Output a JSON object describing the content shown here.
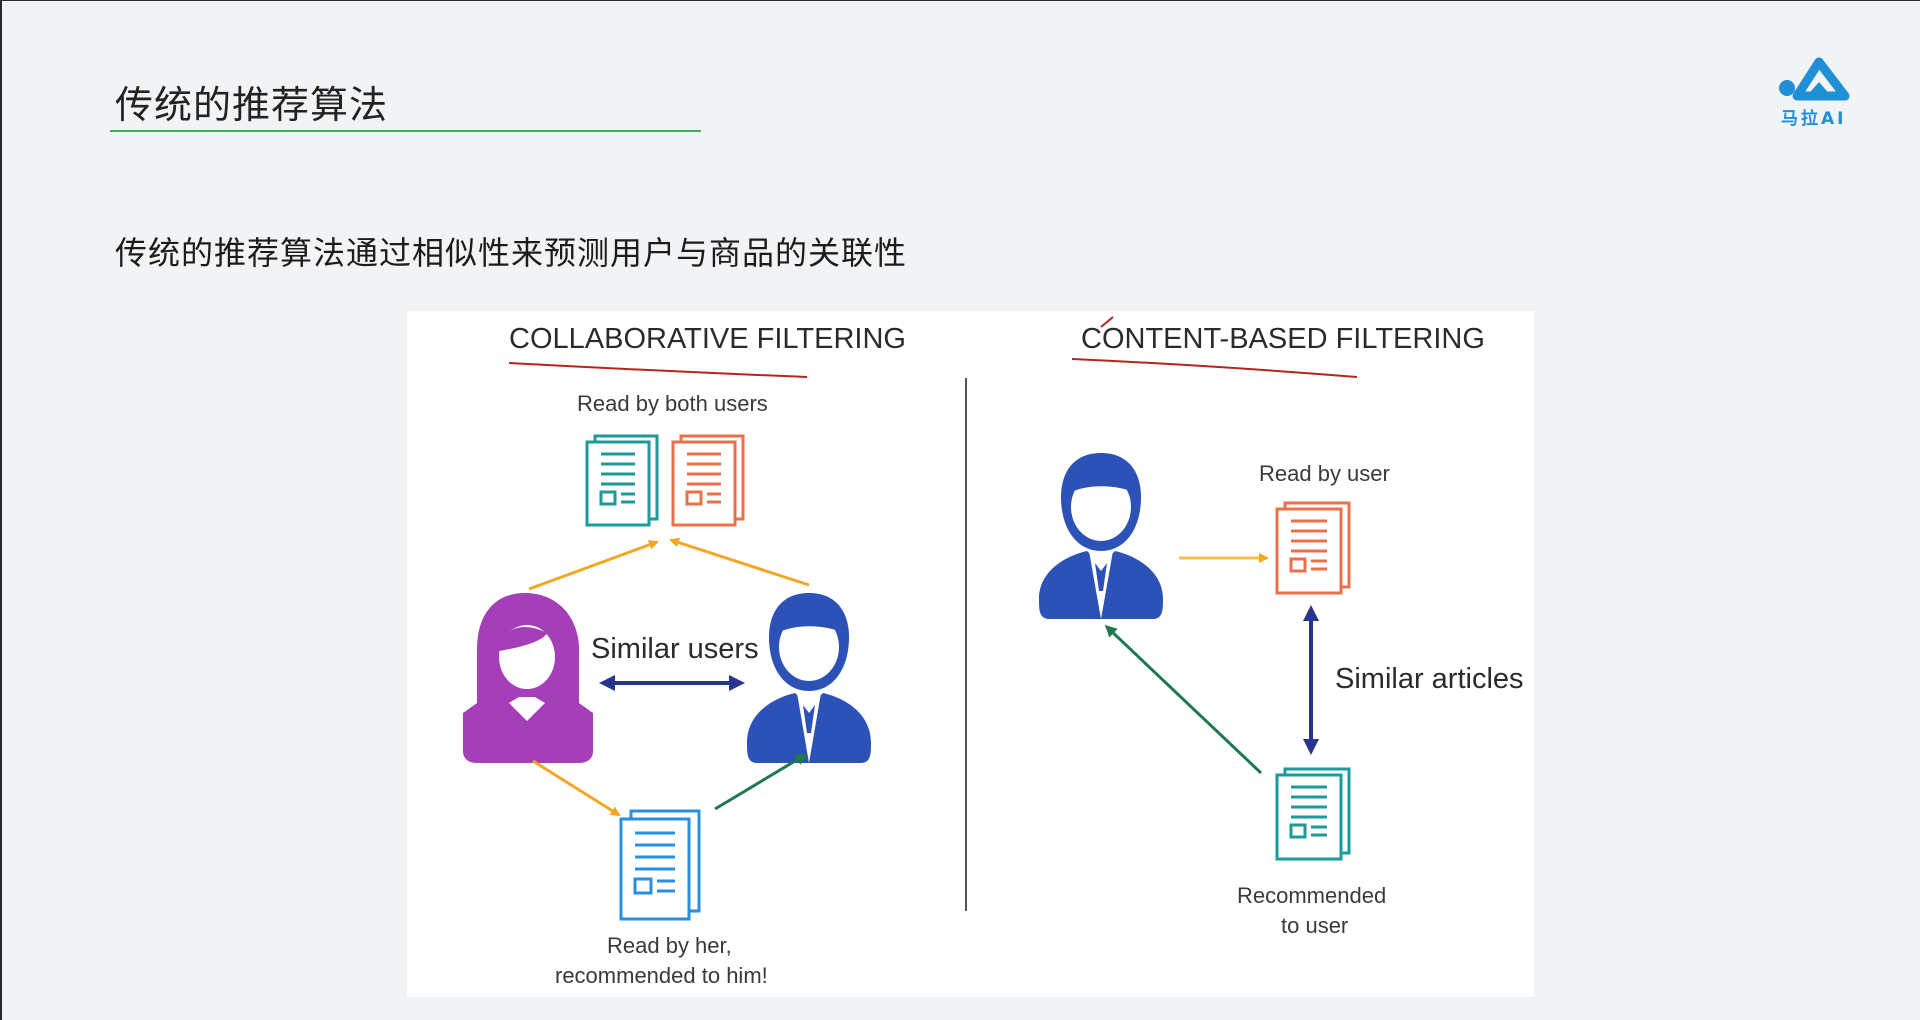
{
  "slide": {
    "title": "传统的推荐算法",
    "subtitle": "传统的推荐算法通过相似性来预测用户与商品的关联性"
  },
  "logo": {
    "text": "马拉AI",
    "icon": "mountain-dot-logo-icon",
    "color": "#1f8fd6"
  },
  "figure": {
    "collaborative": {
      "heading": "COLLABORATIVE FILTERING",
      "read_by_both": "Read by both users",
      "similar_users": "Similar users",
      "read_by_her_line1": "Read by her,",
      "read_by_her_line2": "recommended to him!"
    },
    "content_based": {
      "heading": "CONTENT-BASED FILTERING",
      "read_by_user": "Read by user",
      "similar_articles": "Similar articles",
      "recommended_line1": "Recommended",
      "recommended_line2": "to user"
    },
    "colors": {
      "teal_doc": "#1d9a9a",
      "orange_doc": "#e8704a",
      "blue_doc": "#2a8fe0",
      "woman": "#a43fb8",
      "man": "#2c52b8",
      "orange_arrow": "#f5a623",
      "green_arrow": "#1e7a4e",
      "navy_arrow": "#27358f",
      "annotation_red": "#b3261e"
    }
  }
}
